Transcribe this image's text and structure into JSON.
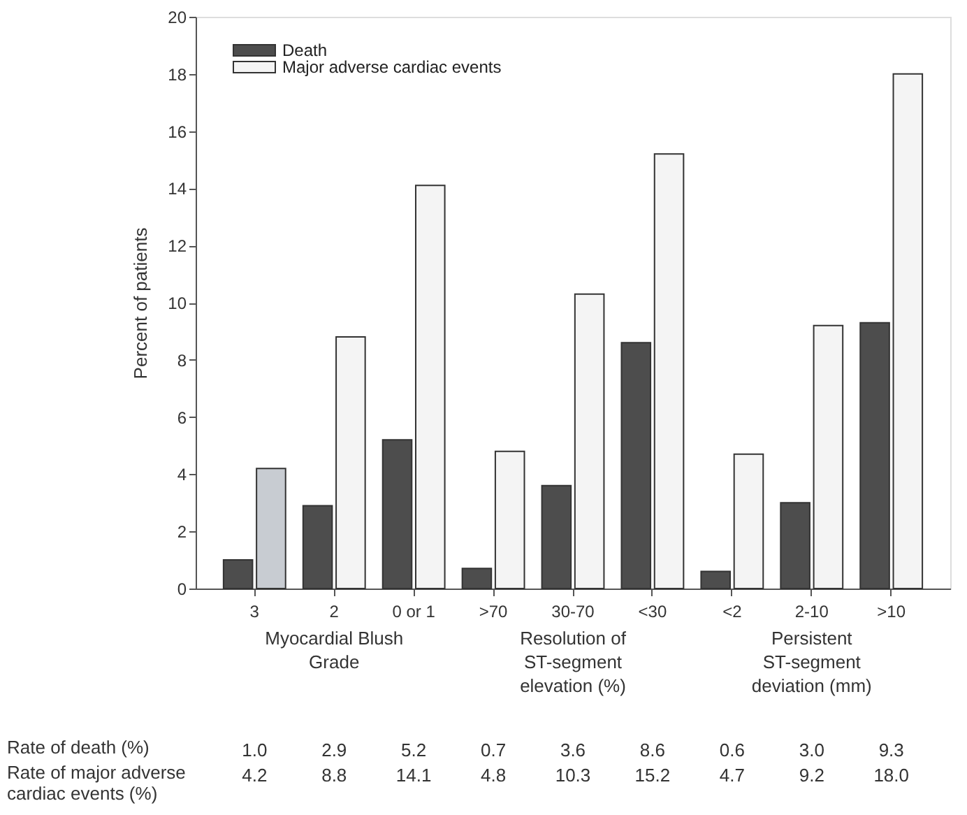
{
  "chart_data": {
    "type": "bar",
    "ylabel": "Percent of patients",
    "categories": [
      "3",
      "2",
      "0 or 1",
      ">70",
      "30-70",
      "<30",
      "<2",
      "2-10",
      ">10"
    ],
    "series": [
      {
        "name": "Death",
        "color": "#4d4d4d",
        "values": [
          1.0,
          2.9,
          5.2,
          0.7,
          3.6,
          8.6,
          0.6,
          3.0,
          9.3
        ],
        "value_labels": [
          "1.0",
          "2.9",
          "5.2",
          "0.7",
          "3.6",
          "8.6",
          "0.6",
          "3.0",
          "9.3"
        ]
      },
      {
        "name": "Major adverse cardiac events",
        "color": "#f4f4f4",
        "colors": [
          "#c8ccd2",
          "#f4f4f4",
          "#f4f4f4",
          "#f4f4f4",
          "#f4f4f4",
          "#f4f4f4",
          "#f4f4f4",
          "#f4f4f4",
          "#f4f4f4"
        ],
        "values": [
          4.2,
          8.8,
          14.1,
          4.8,
          10.3,
          15.2,
          4.7,
          9.2,
          18.0
        ],
        "value_labels": [
          "4.2",
          "8.8",
          "14.1",
          "4.8",
          "10.3",
          "15.2",
          "4.7",
          "9.2",
          "18.0"
        ]
      }
    ],
    "ylim": [
      0,
      20
    ],
    "yticks": [
      0,
      2,
      4,
      6,
      8,
      10,
      12,
      14,
      16,
      18,
      20
    ],
    "grid": false,
    "legend": "top left",
    "annotations": [
      "Myocardial Blush Grade",
      "Resolution of ST-segment elevation (%)",
      "Persistent ST-segment deviation (mm)",
      "Rate of death (%)",
      "Rate of major adverse cardiac events (%)"
    ]
  }
}
